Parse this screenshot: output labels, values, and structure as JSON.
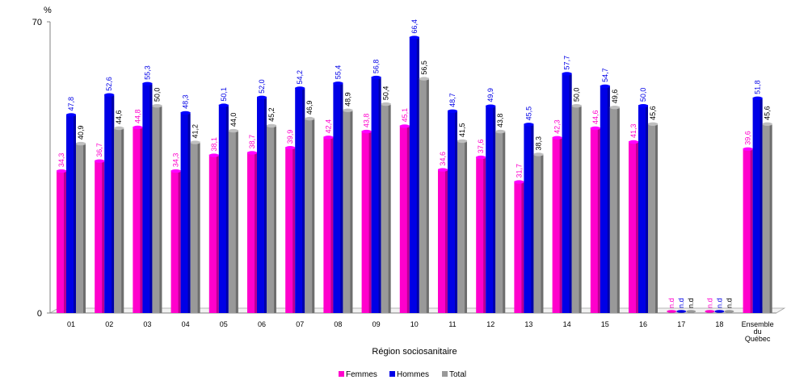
{
  "chart_data": {
    "type": "bar",
    "y_unit": "%",
    "ylim": [
      0,
      70
    ],
    "yticks": [
      "0",
      "70"
    ],
    "xlabel": "Région sociosanitaire",
    "categories": [
      "01",
      "02",
      "03",
      "04",
      "05",
      "06",
      "07",
      "08",
      "09",
      "10",
      "11",
      "12",
      "13",
      "14",
      "15",
      "16",
      "17",
      "18",
      "Ensemble du Québec"
    ],
    "series": [
      {
        "name": "Femmes",
        "color": "#ff00cc",
        "values": [
          34.3,
          36.7,
          44.8,
          34.3,
          38.1,
          38.7,
          39.9,
          42.4,
          43.8,
          45.1,
          34.6,
          37.6,
          31.7,
          42.3,
          44.6,
          41.3,
          null,
          null,
          39.6
        ],
        "labels": [
          "34,3",
          "36,7",
          "44,8",
          "34,3",
          "38,1",
          "38,7",
          "39,9",
          "42,4",
          "43,8",
          "45,1",
          "34,6",
          "37,6",
          "31,7",
          "42,3",
          "44,6",
          "41,3",
          "n.d",
          "n.d",
          "39,6"
        ]
      },
      {
        "name": "Hommes",
        "color": "#0000e6",
        "values": [
          47.8,
          52.6,
          55.3,
          48.3,
          50.1,
          52.0,
          54.2,
          55.4,
          56.8,
          66.4,
          48.7,
          49.9,
          45.5,
          57.7,
          54.7,
          50.0,
          null,
          null,
          51.8
        ],
        "labels": [
          "47,8",
          "52,6",
          "55,3",
          "48,3",
          "50,1",
          "52,0",
          "54,2",
          "55,4",
          "56,8",
          "66,4",
          "48,7",
          "49,9",
          "45,5",
          "57,7",
          "54,7",
          "50,0",
          "n.d",
          "n.d",
          "51,8"
        ]
      },
      {
        "name": "Total",
        "color": "#999999",
        "values": [
          40.9,
          44.6,
          50.0,
          41.2,
          44.0,
          45.2,
          46.9,
          48.9,
          50.4,
          56.5,
          41.5,
          43.8,
          38.3,
          50.0,
          49.6,
          45.6,
          null,
          null,
          45.6
        ],
        "labels": [
          "40,9",
          "44,6",
          "50,0",
          "41,2",
          "44,0",
          "45,2",
          "46,9",
          "48,9",
          "50,4",
          "56,5",
          "41,5",
          "43,8",
          "38,3",
          "50,0",
          "49,6",
          "45,6",
          "n.d",
          "n.d",
          "45,6"
        ]
      }
    ],
    "legend_position": "bottom-center",
    "grid": false
  }
}
